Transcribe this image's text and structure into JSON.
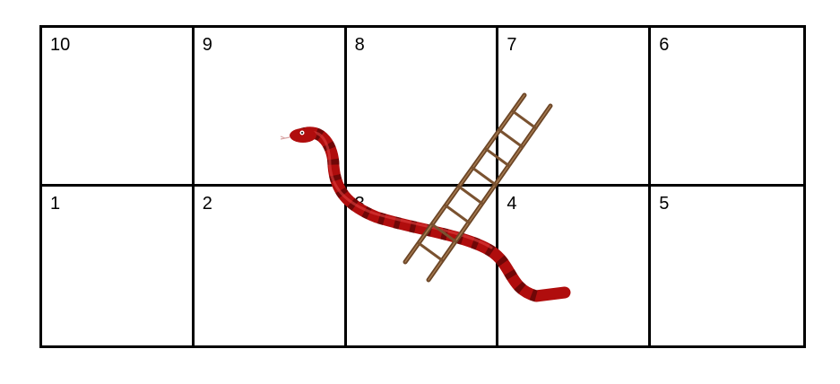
{
  "board": {
    "rows": [
      [
        "10",
        "9",
        "8",
        "7",
        "6"
      ],
      [
        "1",
        "2",
        "3",
        "4",
        "5"
      ]
    ]
  },
  "pieces": {
    "snake": {
      "name": "snake",
      "color": "#b00d0d",
      "stripe_color": "#5a0606"
    },
    "ladder": {
      "name": "ladder",
      "color": "#7a5230"
    }
  }
}
